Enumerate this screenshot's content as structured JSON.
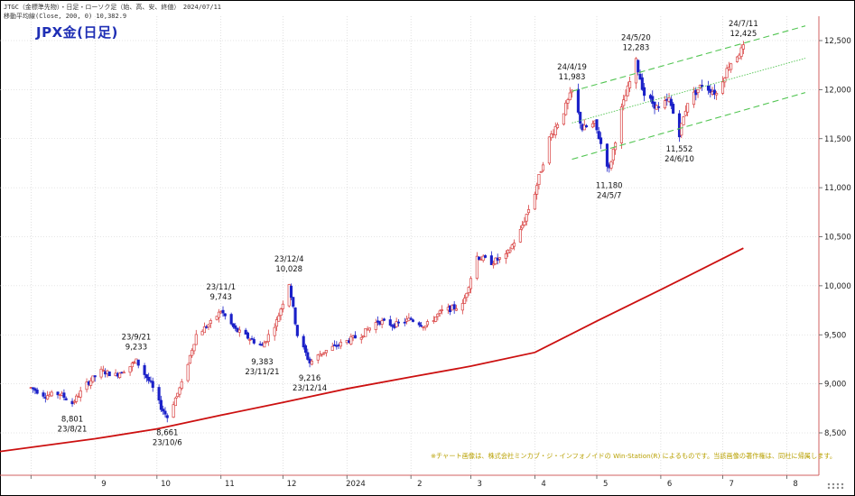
{
  "header": {
    "line1": "JTGC（金標準先物）・日足・ローソク足（始、高、安、終値）　2024/07/11",
    "line2": "移動平均線(Close, 200, 0) 10,382.9",
    "title": "JPX金(日足)"
  },
  "footer_note": "※チャート画像は、株式会社ミンカブ・ジ・インフォノイドの Win-Station(R) によるものです。当該画像の著作権は、同社に帰属します。",
  "icons": {
    "corner": "grab-handle-icon"
  },
  "colors": {
    "up": "#d84040",
    "down": "#1a20c8",
    "ma": "#cc1010",
    "channel": "#52c552",
    "title": "#1f2fb5"
  },
  "chart_data": {
    "type": "candlestick",
    "y_ticks": [
      "8,500",
      "9,000",
      "9,500",
      "10,000",
      "10,500",
      "11,000",
      "11,500",
      "12,000",
      "12,500"
    ],
    "y_tick_values": [
      8500,
      9000,
      9500,
      10000,
      10500,
      11000,
      11500,
      12000,
      12500
    ],
    "ylim": [
      8250,
      12720
    ],
    "x_ticks": [
      "9",
      "10",
      "11",
      "12",
      "2024",
      "2",
      "3",
      "4",
      "5",
      "6",
      "7",
      "8"
    ],
    "series_close_path": [
      [
        "2023-08-01",
        8960
      ],
      [
        "2023-08-08",
        8880
      ],
      [
        "2023-08-15",
        8900
      ],
      [
        "2023-08-21",
        8801
      ],
      [
        "2023-08-28",
        9000
      ],
      [
        "2023-09-04",
        9130
      ],
      [
        "2023-09-11",
        9090
      ],
      [
        "2023-09-18",
        9180
      ],
      [
        "2023-09-21",
        9233
      ],
      [
        "2023-09-28",
        9000
      ],
      [
        "2023-10-03",
        8760
      ],
      [
        "2023-10-06",
        8661
      ],
      [
        "2023-10-13",
        9000
      ],
      [
        "2023-10-20",
        9500
      ],
      [
        "2023-10-27",
        9620
      ],
      [
        "2023-11-01",
        9743
      ],
      [
        "2023-11-08",
        9550
      ],
      [
        "2023-11-15",
        9460
      ],
      [
        "2023-11-21",
        9383
      ],
      [
        "2023-11-28",
        9640
      ],
      [
        "2023-12-04",
        10028
      ],
      [
        "2023-12-08",
        9500
      ],
      [
        "2023-12-14",
        9216
      ],
      [
        "2023-12-20",
        9320
      ],
      [
        "2023-12-28",
        9400
      ],
      [
        "2024-01-08",
        9500
      ],
      [
        "2024-01-16",
        9640
      ],
      [
        "2024-01-24",
        9600
      ],
      [
        "2024-02-01",
        9660
      ],
      [
        "2024-02-08",
        9590
      ],
      [
        "2024-02-16",
        9740
      ],
      [
        "2024-02-26",
        9800
      ],
      [
        "2024-03-04",
        10300
      ],
      [
        "2024-03-11",
        10240
      ],
      [
        "2024-03-18",
        10300
      ],
      [
        "2024-03-25",
        10560
      ],
      [
        "2024-04-01",
        10950
      ],
      [
        "2024-04-08",
        11500
      ],
      [
        "2024-04-15",
        11780
      ],
      [
        "2024-04-19",
        11983
      ],
      [
        "2024-04-24",
        11600
      ],
      [
        "2024-04-30",
        11650
      ],
      [
        "2024-05-07",
        11180
      ],
      [
        "2024-05-13",
        11800
      ],
      [
        "2024-05-20",
        12283
      ],
      [
        "2024-05-24",
        11950
      ],
      [
        "2024-05-31",
        11800
      ],
      [
        "2024-06-05",
        11900
      ],
      [
        "2024-06-10",
        11552
      ],
      [
        "2024-06-14",
        11880
      ],
      [
        "2024-06-21",
        12050
      ],
      [
        "2024-06-28",
        11960
      ],
      [
        "2024-07-04",
        12250
      ],
      [
        "2024-07-11",
        12425
      ]
    ],
    "moving_average_200": [
      [
        "2023-07-17",
        8310
      ],
      [
        "2023-09-01",
        8440
      ],
      [
        "2023-10-01",
        8540
      ],
      [
        "2023-11-01",
        8680
      ],
      [
        "2023-12-01",
        8810
      ],
      [
        "2024-01-01",
        8950
      ],
      [
        "2024-02-01",
        9070
      ],
      [
        "2024-03-01",
        9180
      ],
      [
        "2024-04-01",
        9320
      ],
      [
        "2024-05-01",
        9640
      ],
      [
        "2024-06-01",
        9960
      ],
      [
        "2024-07-11",
        10382.9
      ]
    ],
    "channel": {
      "upper": [
        [
          "2024-04-19",
          11983
        ],
        [
          "2024-08-10",
          12650
        ]
      ],
      "middle": [
        [
          "2024-04-19",
          11660
        ],
        [
          "2024-08-10",
          12320
        ]
      ],
      "lower": [
        [
          "2024-04-19",
          11290
        ],
        [
          "2024-08-10",
          11970
        ]
      ]
    },
    "annotations": [
      {
        "date": "2023-08-21",
        "value": 8801,
        "value_label": "8,801",
        "date_label": "23/8/21",
        "place": "below"
      },
      {
        "date": "2023-09-21",
        "value": 9233,
        "value_label": "9,233",
        "date_label": "23/9/21",
        "place": "above"
      },
      {
        "date": "2023-10-06",
        "value": 8661,
        "value_label": "8,661",
        "date_label": "23/10/6",
        "place": "below"
      },
      {
        "date": "2023-11-01",
        "value": 9743,
        "value_label": "9,743",
        "date_label": "23/11/1",
        "place": "above"
      },
      {
        "date": "2023-11-21",
        "value": 9383,
        "value_label": "9,383",
        "date_label": "23/11/21",
        "place": "below"
      },
      {
        "date": "2023-12-04",
        "value": 10028,
        "value_label": "10,028",
        "date_label": "23/12/4",
        "place": "above"
      },
      {
        "date": "2023-12-14",
        "value": 9216,
        "value_label": "9,216",
        "date_label": "23/12/14",
        "place": "below"
      },
      {
        "date": "2024-04-19",
        "value": 11983,
        "value_label": "11,983",
        "date_label": "24/4/19",
        "place": "above"
      },
      {
        "date": "2024-05-07",
        "value": 11180,
        "value_label": "11,180",
        "date_label": "24/5/7",
        "place": "below"
      },
      {
        "date": "2024-05-20",
        "value": 12283,
        "value_label": "12,283",
        "date_label": "24/5/20",
        "place": "above"
      },
      {
        "date": "2024-06-10",
        "value": 11552,
        "value_label": "11,552",
        "date_label": "24/6/10",
        "place": "below"
      },
      {
        "date": "2024-07-11",
        "value": 12425,
        "value_label": "12,425",
        "date_label": "24/7/11",
        "place": "above"
      }
    ],
    "grid": true,
    "legend": "none"
  }
}
